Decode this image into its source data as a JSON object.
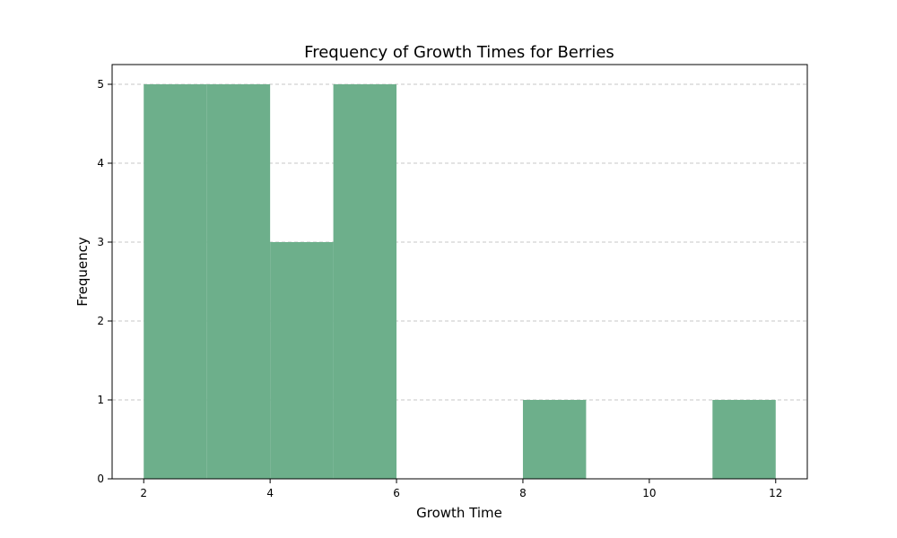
{
  "colors": {
    "bar": "#6daf8b",
    "grid": "#c7c7c7"
  },
  "chart_data": {
    "type": "bar",
    "title": "Frequency of Growth Times for Berries",
    "xlabel": "Growth Time",
    "ylabel": "Frequency",
    "bins": [
      {
        "start": 2,
        "end": 3,
        "value": 5
      },
      {
        "start": 3,
        "end": 4,
        "value": 5
      },
      {
        "start": 4,
        "end": 5,
        "value": 3
      },
      {
        "start": 5,
        "end": 6,
        "value": 5
      },
      {
        "start": 6,
        "end": 7,
        "value": 0
      },
      {
        "start": 7,
        "end": 8,
        "value": 0
      },
      {
        "start": 8,
        "end": 9,
        "value": 1
      },
      {
        "start": 9,
        "end": 10,
        "value": 0
      },
      {
        "start": 10,
        "end": 11,
        "value": 0
      },
      {
        "start": 11,
        "end": 12,
        "value": 1
      }
    ],
    "xlim": [
      1.5,
      12.5
    ],
    "ylim": [
      0,
      5.25
    ],
    "xticks": [
      "2",
      "4",
      "6",
      "8",
      "10",
      "12"
    ],
    "yticks": [
      "0",
      "1",
      "2",
      "3",
      "4",
      "5"
    ],
    "grid": "y-dashed"
  }
}
